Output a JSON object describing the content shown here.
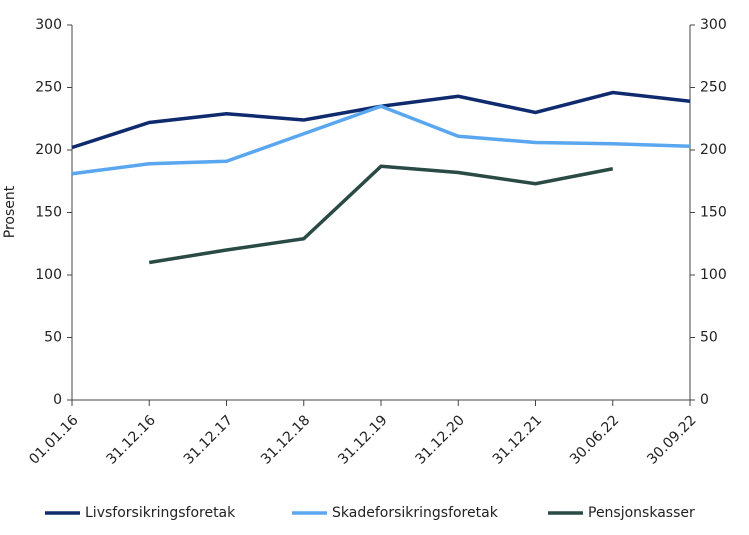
{
  "chart_data": {
    "type": "line",
    "y_label": "Prosent",
    "categories": [
      "01.01.16",
      "31.12.16",
      "31.12.17",
      "31.12.18",
      "31.12.19",
      "31.12.20",
      "31.12.21",
      "30.06.22",
      "30.09.22"
    ],
    "series": [
      {
        "name": "Livsforsikringsforetak",
        "color": "#0f2b6e",
        "values": [
          202,
          222,
          229,
          224,
          235,
          243,
          230,
          246,
          239
        ]
      },
      {
        "name": "Skadeforsikringsforetak",
        "color": "#5aa7f0",
        "values": [
          181,
          189,
          191,
          213,
          235,
          211,
          206,
          205,
          203
        ]
      },
      {
        "name": "Pensjonskasser",
        "color": "#2a4a45",
        "values": [
          null,
          110,
          120,
          129,
          187,
          182,
          173,
          185,
          null
        ]
      }
    ],
    "ylim": [
      0,
      300
    ],
    "yticks": [
      0,
      50,
      100,
      150,
      200,
      250,
      300
    ],
    "y2lim": [
      0,
      300
    ],
    "y2ticks": [
      0,
      50,
      100,
      150,
      200,
      250,
      300
    ]
  }
}
